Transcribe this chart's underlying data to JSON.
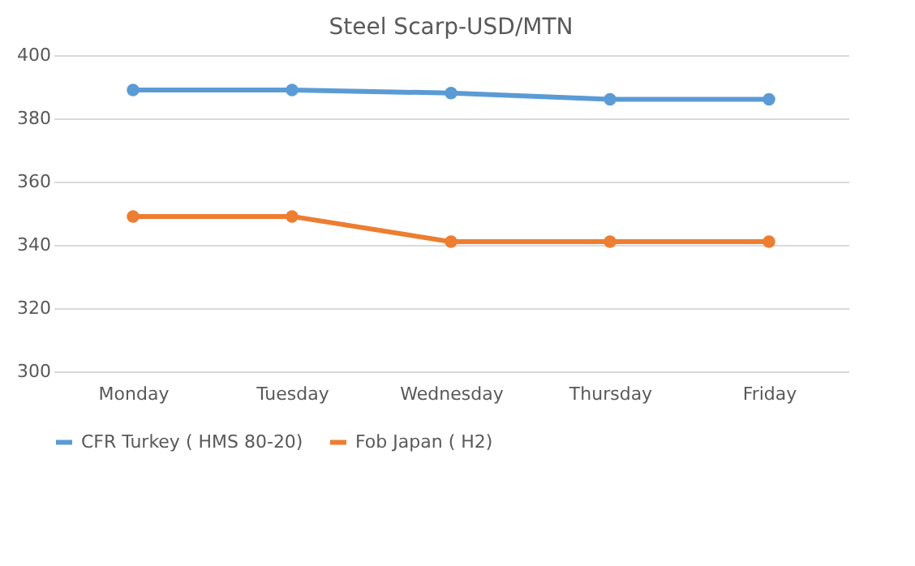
{
  "chart_data": {
    "type": "line",
    "title": "Steel Scarp-USD/MTN",
    "categories": [
      "Monday",
      "Tuesday",
      "Wednesday",
      "Thursday",
      "Friday"
    ],
    "series": [
      {
        "name": "CFR Turkey ( HMS 80-20)",
        "color": "#5b9bd5",
        "values": [
          389,
          389,
          388,
          386,
          386
        ]
      },
      {
        "name": "Fob Japan ( H2)",
        "color": "#ed7d31",
        "values": [
          349,
          349,
          341,
          341,
          341
        ]
      }
    ],
    "ylim": [
      300,
      400
    ],
    "yticks": [
      300,
      320,
      340,
      360,
      380,
      400
    ],
    "grid": "y",
    "legend": "bottom",
    "marker": "circle",
    "line_style": "solid"
  }
}
